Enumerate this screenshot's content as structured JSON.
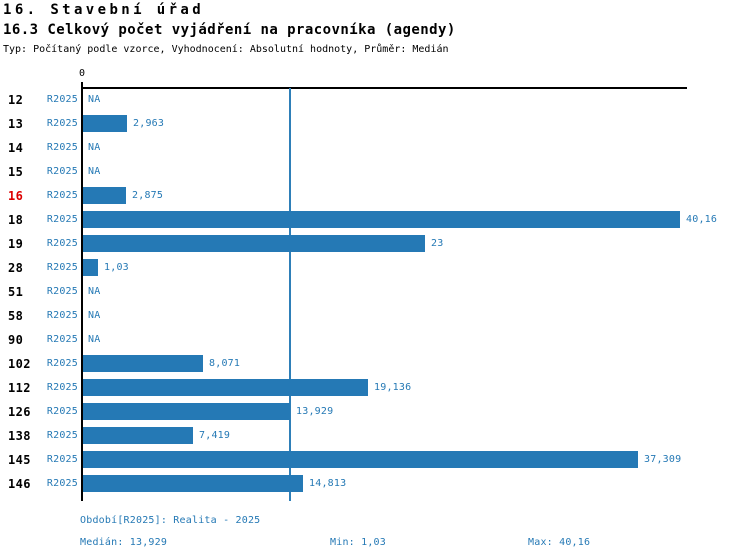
{
  "chart_data": {
    "type": "bar",
    "orientation": "horizontal",
    "title": "16. Stavební úřad",
    "subtitle": "16.3 Celkový počet vyjádření na pracovníka (agendy)",
    "note": "Typ: Počítaný podle vzorce, Vyhodnocení: Absolutní hodnoty, Průměr: Medián",
    "series_name": "R2025",
    "categories": [
      "12",
      "13",
      "14",
      "15",
      "16",
      "18",
      "19",
      "28",
      "51",
      "58",
      "90",
      "102",
      "112",
      "126",
      "138",
      "145",
      "146"
    ],
    "values": [
      null,
      2.963,
      null,
      null,
      2.875,
      40.16,
      23,
      1.03,
      null,
      null,
      null,
      8.071,
      19.136,
      13.929,
      7.419,
      37.309,
      14.813
    ],
    "value_labels": [
      "NA",
      "2,963",
      "NA",
      "NA",
      "2,875",
      "40,16",
      "23",
      "1,03",
      "NA",
      "NA",
      "NA",
      "8,071",
      "19,136",
      "13,929",
      "7,419",
      "37,309",
      "14,813"
    ],
    "highlighted_categories": [
      "16"
    ],
    "xlim": [
      0,
      40.75
    ],
    "x_zero_label": "0",
    "reference_line": {
      "name": "Medián",
      "value": 13.929
    },
    "legend": false,
    "grid": false
  },
  "footer": {
    "period": "Období[R2025]: Realita - 2025",
    "median": "Medián: 13,929",
    "min": "Min: 1,03",
    "max": "Max: 40,16"
  },
  "colors": {
    "bar": "#2579b5",
    "blue_text": "#2579b5",
    "highlight_red": "#dd0000",
    "axis_black": "#000000",
    "median_line": "#2e7fb8"
  }
}
